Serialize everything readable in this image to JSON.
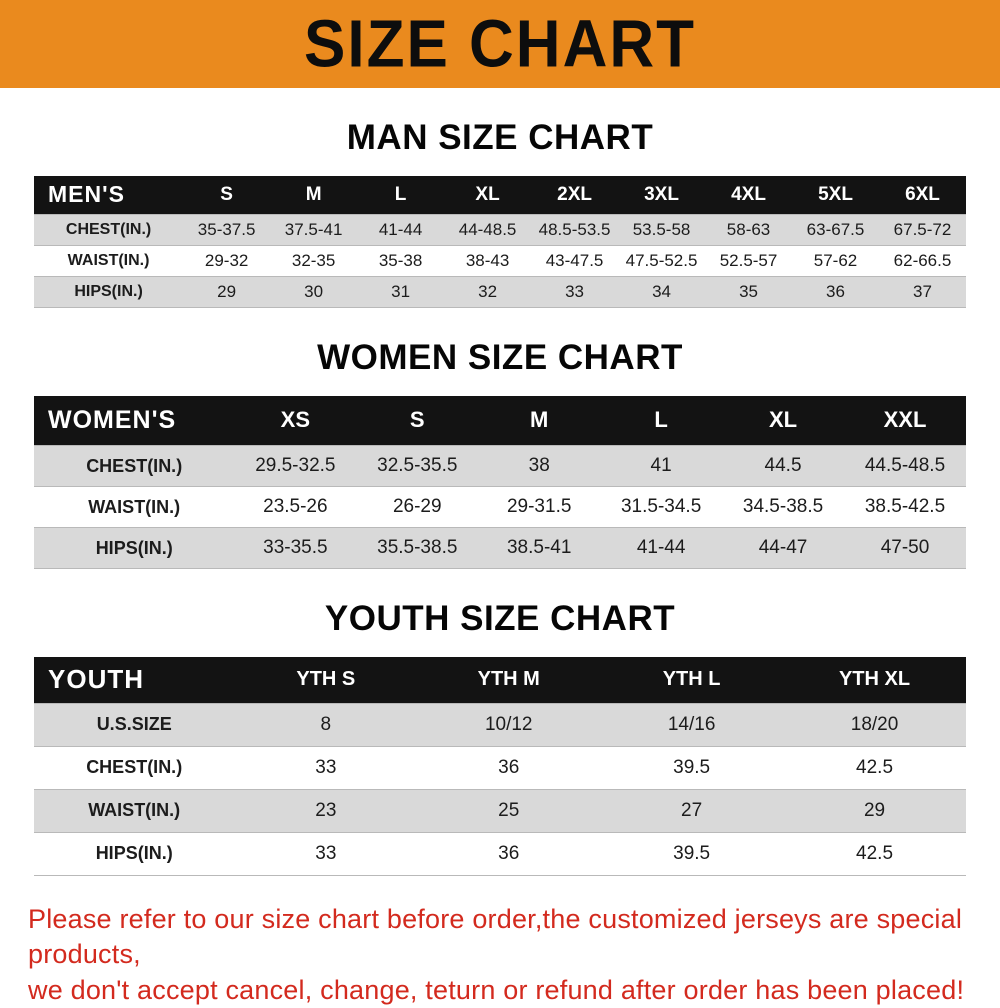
{
  "banner": {
    "title": "SIZE CHART"
  },
  "colors": {
    "banner-orange": "#ea8a1e",
    "header-black": "#131313",
    "row-gray": "#d9d9d9",
    "footer-red": "#d32a1e"
  },
  "sections": [
    {
      "heading": "MAN SIZE CHART",
      "table": {
        "header_label": "MEN'S",
        "columns": [
          "S",
          "M",
          "L",
          "XL",
          "2XL",
          "3XL",
          "4XL",
          "5XL",
          "6XL"
        ],
        "rows": [
          {
            "label": "CHEST(IN.)",
            "values": [
              "35-37.5",
              "37.5-41",
              "41-44",
              "44-48.5",
              "48.5-53.5",
              "53.5-58",
              "58-63",
              "63-67.5",
              "67.5-72"
            ]
          },
          {
            "label": "WAIST(IN.)",
            "values": [
              "29-32",
              "32-35",
              "35-38",
              "38-43",
              "43-47.5",
              "47.5-52.5",
              "52.5-57",
              "57-62",
              "62-66.5"
            ]
          },
          {
            "label": "HIPS(IN.)",
            "values": [
              "29",
              "30",
              "31",
              "32",
              "33",
              "34",
              "35",
              "36",
              "37"
            ]
          }
        ]
      }
    },
    {
      "heading": "WOMEN SIZE CHART",
      "table": {
        "header_label": "WOMEN'S",
        "columns": [
          "XS",
          "S",
          "M",
          "L",
          "XL",
          "XXL"
        ],
        "rows": [
          {
            "label": "CHEST(IN.)",
            "values": [
              "29.5-32.5",
              "32.5-35.5",
              "38",
              "41",
              "44.5",
              "44.5-48.5"
            ]
          },
          {
            "label": "WAIST(IN.)",
            "values": [
              "23.5-26",
              "26-29",
              "29-31.5",
              "31.5-34.5",
              "34.5-38.5",
              "38.5-42.5"
            ]
          },
          {
            "label": "HIPS(IN.)",
            "values": [
              "33-35.5",
              "35.5-38.5",
              "38.5-41",
              "41-44",
              "44-47",
              "47-50"
            ]
          }
        ]
      }
    },
    {
      "heading": "YOUTH SIZE CHART",
      "table": {
        "header_label": "YOUTH",
        "columns": [
          "YTH S",
          "YTH M",
          "YTH L",
          "YTH XL"
        ],
        "rows": [
          {
            "label": "U.S.SIZE",
            "values": [
              "8",
              "10/12",
              "14/16",
              "18/20"
            ]
          },
          {
            "label": "CHEST(IN.)",
            "values": [
              "33",
              "36",
              "39.5",
              "42.5"
            ]
          },
          {
            "label": "WAIST(IN.)",
            "values": [
              "23",
              "25",
              "27",
              "29"
            ]
          },
          {
            "label": "HIPS(IN.)",
            "values": [
              "33",
              "36",
              "39.5",
              "42.5"
            ]
          }
        ]
      }
    }
  ],
  "footer": {
    "line1": "Please refer to our size chart before order,the customized jerseys are special products,",
    "line2": "we don't accept cancel, change, teturn or refund after order has been placed!"
  }
}
